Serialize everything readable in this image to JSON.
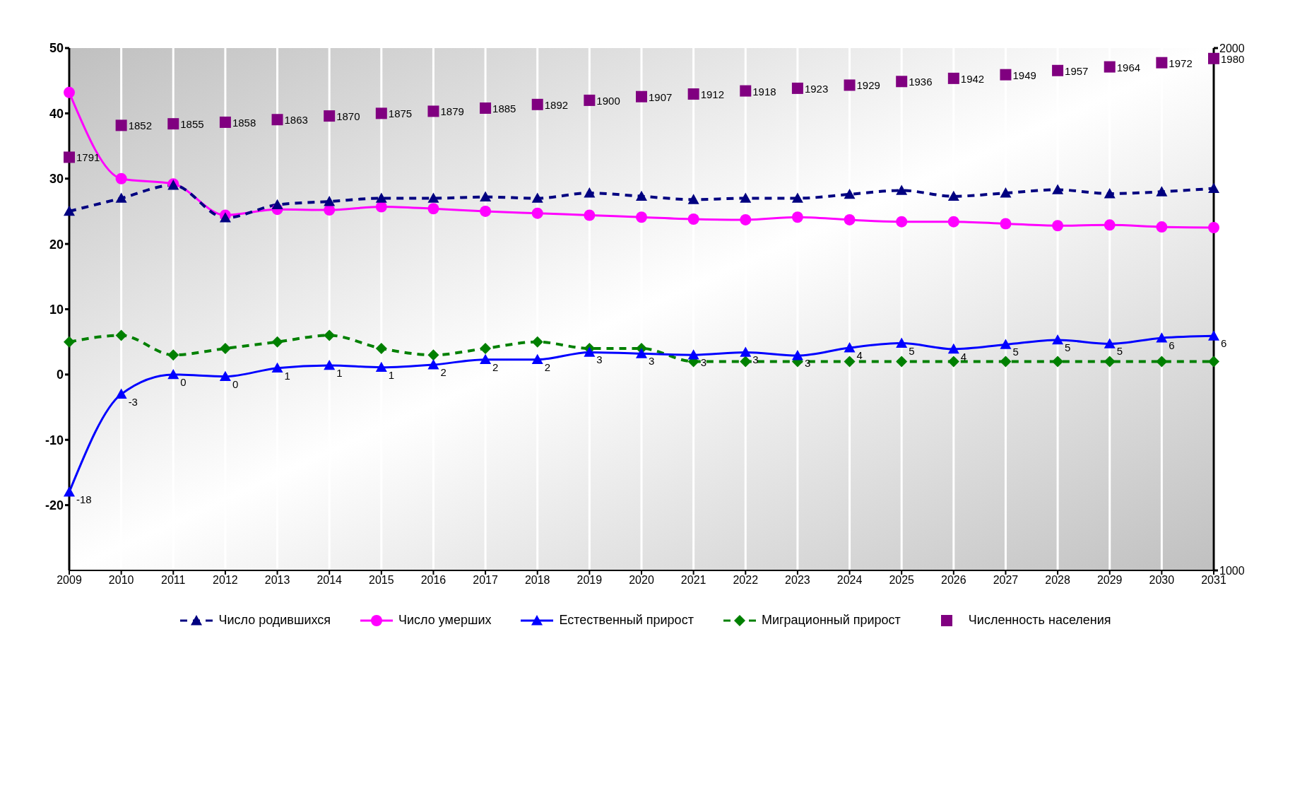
{
  "chart_data": {
    "type": "line",
    "categories": [
      "2009",
      "2010",
      "2011",
      "2012",
      "2013",
      "2014",
      "2015",
      "2016",
      "2017",
      "2018",
      "2019",
      "2020",
      "2021",
      "2022",
      "2023",
      "2024",
      "2025",
      "2026",
      "2027",
      "2028",
      "2029",
      "2030",
      "2031"
    ],
    "series": [
      {
        "name": "Число родившихся",
        "color": "#000080",
        "marker": "triangle",
        "line_style": "dashed",
        "values": [
          25,
          27,
          29,
          24,
          26,
          26.5,
          27,
          27,
          27.2,
          27,
          27.8,
          27.3,
          26.8,
          27,
          27,
          27.6,
          28.2,
          27.3,
          27.8,
          28.3,
          27.7,
          28,
          28.5
        ]
      },
      {
        "name": "Число умерших",
        "color": "#ff00ff",
        "marker": "circle",
        "line_style": "solid",
        "values": [
          43.2,
          30,
          29.2,
          24.4,
          25.3,
          25.2,
          25.7,
          25.4,
          25,
          24.7,
          24.4,
          24.1,
          23.8,
          23.7,
          24.1,
          23.7,
          23.4,
          23.4,
          23.1,
          22.8,
          22.9,
          22.6,
          22.5
        ]
      },
      {
        "name": "Естественный прирост",
        "color": "#0000ff",
        "marker": "triangle",
        "line_style": "solid",
        "values": [
          -18,
          -3,
          0,
          -0.3,
          1,
          1.4,
          1.1,
          1.5,
          2.3,
          2.3,
          3.4,
          3.2,
          3,
          3.4,
          2.9,
          4.1,
          4.8,
          3.9,
          4.6,
          5.3,
          4.7,
          5.6,
          5.9
        ],
        "value_labels": [
          "-18",
          "-3",
          "0",
          "0",
          "1",
          "1",
          "1",
          "2",
          "2",
          "2",
          "3",
          "3",
          "3",
          "3",
          "3",
          "4",
          "5",
          "4",
          "5",
          "5",
          "5",
          "6",
          "6"
        ]
      },
      {
        "name": "Миграционный прирост",
        "color": "#008000",
        "marker": "diamond",
        "line_style": "dashed",
        "values": [
          5,
          6,
          3,
          4,
          5,
          6,
          4,
          3,
          4,
          5,
          4,
          4,
          2,
          2,
          2,
          2,
          2,
          2,
          2,
          2,
          2,
          2,
          2
        ]
      },
      {
        "name": "Численность населения",
        "type": "scatter",
        "axis": "y2",
        "color": "#800080",
        "marker": "square",
        "values": [
          1791,
          1852,
          1855,
          1858,
          1863,
          1870,
          1875,
          1879,
          1885,
          1892,
          1900,
          1907,
          1912,
          1918,
          1923,
          1929,
          1936,
          1942,
          1949,
          1957,
          1964,
          1972,
          1980
        ],
        "value_labels": [
          "1791",
          "1852",
          "1855",
          "1858",
          "1863",
          "1870",
          "1875",
          "1879",
          "1885",
          "1892",
          "1900",
          "1907",
          "1912",
          "1918",
          "1923",
          "1929",
          "1936",
          "1942",
          "1949",
          "1957",
          "1964",
          "1972",
          "1980"
        ]
      }
    ],
    "ylim": [
      -30,
      50
    ],
    "yticks": [
      -20,
      -10,
      0,
      10,
      20,
      30,
      40,
      50
    ],
    "y2lim": [
      1000,
      2000
    ],
    "y2ticks": [
      1000,
      2000
    ],
    "grid": "x",
    "legend": "bottom"
  }
}
